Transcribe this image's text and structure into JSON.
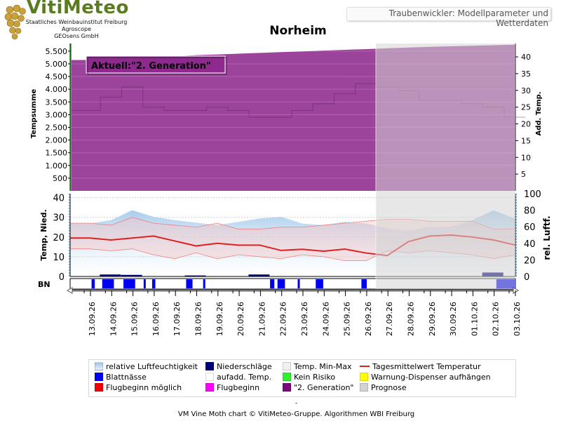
{
  "header": {
    "logo_title": "VitiMeteo",
    "logo_lines": [
      "Staatliches Weinbauinstitut Freiburg",
      "Agroscope",
      "GEOsens GmbH"
    ],
    "subtitle": "Traubenwickler: Modellparameter und Wetterdaten"
  },
  "footer": {
    "dash": "-",
    "credit": "VM Vine Moth chart © VitiMeteo-Gruppe. Algorithmen WBI Freiburg"
  },
  "colors": {
    "generation2": "#8e2a8e",
    "humidity": "#a8ccec",
    "temp_range": "#f6c6c6",
    "temp_mean": "#e02020",
    "leaf_wet": "#0000ee",
    "precip": "#00007a",
    "forecast": "#d3d3d3"
  },
  "chart_data": {
    "type": "area",
    "title": "Norheim",
    "annotation": "Aktuell:\"2. Generation\"",
    "x": [
      "13.09.26",
      "14.09.26",
      "15.09.26",
      "16.09.26",
      "17.09.26",
      "18.09.26",
      "19.09.26",
      "20.09.26",
      "21.09.26",
      "22.09.26",
      "23.09.26",
      "24.09.26",
      "25.09.26",
      "26.09.26",
      "27.09.26",
      "28.09.26",
      "29.09.26",
      "30.09.26",
      "01.10.26",
      "02.10.26",
      "03.10.26"
    ],
    "forecast_from": "26.09.26",
    "top_panel": {
      "ylabel_left": "Tempsumme",
      "ylabel_right": "Add. Temp.",
      "ylim_left": [
        0,
        5800
      ],
      "ylim_right": [
        0,
        44
      ],
      "yticks_left": [
        "500",
        "1.000",
        "1.500",
        "2.000",
        "2.500",
        "3.000",
        "3.500",
        "4.000",
        "4.500",
        "5.000",
        "5.500"
      ],
      "yticks_right": [
        "5",
        "10",
        "15",
        "20",
        "25",
        "30",
        "35",
        "40"
      ],
      "series": [
        {
          "name": "\"2. Generation\"",
          "values": [
            5150,
            5180,
            5230,
            5270,
            5300,
            5340,
            5370,
            5400,
            5430,
            5460,
            5490,
            5520,
            5550,
            5580,
            5610,
            5640,
            5670,
            5690,
            5710,
            5730,
            5750
          ]
        },
        {
          "name": "aufadd. Temp.",
          "values": [
            24,
            28,
            31,
            25,
            24,
            24,
            25,
            24,
            22,
            22,
            24,
            26,
            29,
            32,
            31,
            30,
            27,
            27,
            26,
            25,
            22
          ]
        }
      ]
    },
    "bottom_panel": {
      "ylabel_left": "Temp, Nied.",
      "ylabel_right": "rel. Luftf.",
      "ylim_left": [
        0,
        42
      ],
      "ylim_right": [
        0,
        100
      ],
      "yticks_left": [
        "0",
        "10",
        "20",
        "30",
        "40"
      ],
      "yticks_right": [
        "0",
        "20",
        "40",
        "60",
        "80",
        "100"
      ],
      "series": [
        {
          "name": "relative Luftfeuchtigkeit",
          "values": [
            64,
            68,
            80,
            72,
            68,
            65,
            62,
            66,
            70,
            72,
            64,
            62,
            66,
            64,
            58,
            55,
            60,
            60,
            68,
            80,
            70
          ]
        },
        {
          "name": "Temp. Min-Max",
          "min": [
            14,
            13,
            14,
            11,
            9,
            12,
            9,
            11,
            10,
            9,
            11,
            10,
            8,
            8,
            13,
            12,
            13,
            12,
            11,
            9,
            11
          ],
          "max": [
            27,
            26,
            30,
            27,
            26,
            25,
            27,
            24,
            24,
            25,
            25,
            26,
            27,
            28,
            29,
            29,
            28,
            28,
            28,
            24,
            24
          ]
        },
        {
          "name": "Tagesmittelwert Temperatur",
          "values": [
            19.5,
            18.5,
            19.5,
            20.5,
            18,
            15.5,
            16.8,
            15.9,
            15.9,
            13.2,
            13.8,
            12.8,
            13.9,
            11.9,
            10.6,
            17.7,
            20.5,
            21,
            20,
            18.5,
            16
          ]
        },
        {
          "name": "Niederschläge",
          "values": [
            0,
            1,
            0.8,
            0,
            0,
            0.5,
            0,
            0,
            1,
            0,
            0,
            0,
            0,
            0,
            0,
            0,
            0,
            0,
            0,
            2,
            0
          ]
        }
      ]
    },
    "bn_panel": {
      "label": "BN",
      "segments": [
        [
          0.35,
          0.5
        ],
        [
          0.85,
          1.4
        ],
        [
          1.85,
          2.4
        ],
        [
          2.8,
          2.9
        ],
        [
          3.2,
          3.35
        ],
        [
          4.8,
          5.1
        ],
        [
          5.6,
          5.7
        ],
        [
          8.75,
          8.95
        ],
        [
          9.1,
          9.45
        ],
        [
          10.05,
          10.15
        ],
        [
          10.9,
          11.25
        ],
        [
          13.05,
          13.3
        ],
        [
          19.4,
          20.3
        ]
      ]
    },
    "legend": [
      {
        "label": "relative Luftfeuchtigkeit",
        "swatch": "humidity"
      },
      {
        "label": "Niederschläge",
        "swatch": "precip"
      },
      {
        "label": "Temp. Min-Max",
        "swatch": "minmax"
      },
      {
        "label": "Tagesmittelwert Temperatur",
        "swatch": "line"
      },
      {
        "label": "Blattnässe",
        "swatch": "leaf"
      },
      {
        "label": "aufadd. Temp.",
        "swatch": "addtemp"
      },
      {
        "label": "Kein Risiko",
        "swatch": "norisk"
      },
      {
        "label": "Warnung-Dispenser aufhängen",
        "swatch": "warn"
      },
      {
        "label": "Flugbeginn möglich",
        "swatch": "possible"
      },
      {
        "label": "Flugbeginn",
        "swatch": "flight"
      },
      {
        "label": "\"2. Generation\"",
        "swatch": "gen2"
      },
      {
        "label": "Prognose",
        "swatch": "forecast"
      }
    ]
  }
}
